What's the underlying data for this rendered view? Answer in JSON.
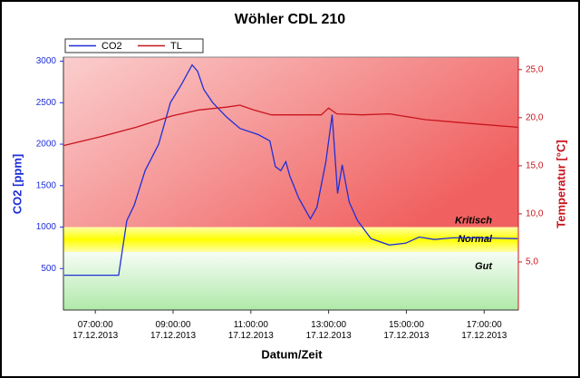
{
  "chart_data": {
    "type": "line",
    "title": "Wöhler CDL 210",
    "xlabel": "Datum/Zeit",
    "ylabel": "CO2 [ppm]",
    "y2label": "Temperatur [°C]",
    "xlim": [
      6.18,
      17.88
    ],
    "xticks": [
      {
        "value": 7,
        "label": "07:00:00 17.12.2013"
      },
      {
        "value": 9,
        "label": "09:00:00 17.12.2013"
      },
      {
        "value": 11,
        "label": "11:00:00 17.12.2013"
      },
      {
        "value": 13,
        "label": "13:00:00 17.12.2013"
      },
      {
        "value": 15,
        "label": "15:00:00 17.12.2013"
      },
      {
        "value": 17,
        "label": "17:00:00 17.12.2013"
      }
    ],
    "ylim": [
      0,
      3050
    ],
    "yticks": [
      500,
      1000,
      1500,
      2000,
      2500,
      3000
    ],
    "y2lim": [
      0,
      26.3
    ],
    "y2ticks": [
      {
        "value": 5,
        "label": "5,0"
      },
      {
        "value": 10,
        "label": "10,0"
      },
      {
        "value": 15,
        "label": "15,0"
      },
      {
        "value": 20,
        "label": "20,0"
      },
      {
        "value": 25,
        "label": "25,0"
      }
    ],
    "grid": false,
    "legend": "top-left",
    "zones": [
      {
        "label": "Kritisch",
        "from": 1000,
        "to": 3050,
        "color": "#ef4f4f"
      },
      {
        "label": "Normal",
        "from": 700,
        "to": 1000,
        "color": "#ffff00"
      },
      {
        "label": "Gut",
        "from": 0,
        "to": 700,
        "color": "#4fcf40"
      }
    ],
    "series": [
      {
        "name": "CO2",
        "color": "#1f2fd8",
        "x": [
          6.2,
          7.6,
          7.81,
          8.0,
          8.28,
          8.63,
          8.93,
          9.21,
          9.49,
          9.63,
          9.79,
          10.02,
          10.37,
          10.72,
          11.19,
          11.49,
          11.63,
          11.77,
          11.9,
          12.0,
          12.23,
          12.53,
          12.7,
          12.93,
          13.09,
          13.23,
          13.35,
          13.53,
          13.74,
          14.09,
          14.56,
          14.98,
          15.33,
          15.72,
          16.19,
          16.88,
          17.86
        ],
        "values": [
          420,
          420,
          1077,
          1264,
          1680,
          2000,
          2500,
          2716,
          2956,
          2880,
          2660,
          2500,
          2330,
          2190,
          2115,
          2040,
          1730,
          1680,
          1790,
          1620,
          1350,
          1100,
          1240,
          1790,
          2355,
          1405,
          1750,
          1300,
          1080,
          860,
          784,
          806,
          880,
          850,
          870,
          870,
          860
        ]
      },
      {
        "name": "TL",
        "color": "#c8141e",
        "axis": "y2",
        "x": [
          6.18,
          7.12,
          8.05,
          8.98,
          9.67,
          10.37,
          10.72,
          11.07,
          11.53,
          12.81,
          13.0,
          13.21,
          13.86,
          14.56,
          15.49,
          16.65,
          17.86
        ],
        "values": [
          17.1,
          18.0,
          19.0,
          20.2,
          20.8,
          21.1,
          21.3,
          20.8,
          20.3,
          20.3,
          21.0,
          20.4,
          20.3,
          20.4,
          19.8,
          19.4,
          19.0
        ]
      }
    ]
  }
}
